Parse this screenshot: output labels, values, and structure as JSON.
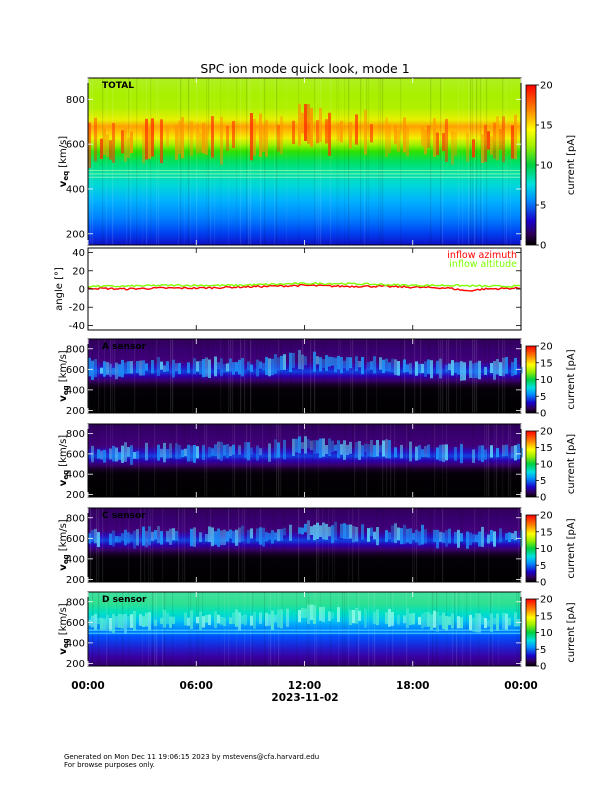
{
  "title": "SPC ion mode quick look, mode 1",
  "footer": {
    "line1": "Generated on Mon Dec 11 19:06:15 2023 by mstevens@cfa.harvard.edu",
    "line2": "For browse purposes only."
  },
  "chart_data": [
    {
      "type": "heatmap",
      "panel": "total",
      "label": "TOTAL",
      "ylabel_main": "v",
      "ylabel_sub": "eq",
      "ylabel_unit": "[km/s]",
      "yticks": [
        200,
        400,
        600,
        800
      ],
      "ylim": [
        150,
        895
      ],
      "colorbar_label": "current [pA]",
      "colorbar_ticks": [
        0,
        5,
        10,
        15,
        20
      ],
      "colorbar_range": [
        0,
        20
      ],
      "peak_speed_profile_kms": {
        "hours": [
          0,
          1,
          2,
          3,
          4,
          6,
          8,
          10,
          11,
          12,
          13,
          15,
          16,
          17,
          18,
          20,
          21,
          22,
          23,
          24
        ],
        "values": [
          610,
          590,
          600,
          610,
          620,
          620,
          625,
          630,
          660,
          690,
          660,
          650,
          640,
          630,
          620,
          605,
          590,
          600,
          620,
          610
        ]
      }
    },
    {
      "type": "line",
      "panel": "angle",
      "ylabel": "angle [°]",
      "yticks": [
        -40,
        -20,
        0,
        20,
        40
      ],
      "ylim": [
        -45,
        45
      ],
      "series": [
        {
          "name": "inflow azimuth",
          "color": "#ff0000",
          "hours": [
            0,
            2,
            4,
            6,
            8,
            10,
            12,
            14,
            16,
            18,
            20,
            21,
            22,
            24
          ],
          "values": [
            1,
            0,
            1,
            1,
            2,
            3,
            4,
            3,
            3,
            2,
            1,
            -2,
            0,
            1
          ]
        },
        {
          "name": "inflow altitude",
          "color": "#7fff00",
          "hours": [
            0,
            2,
            4,
            6,
            8,
            10,
            12,
            14,
            16,
            18,
            20,
            22,
            24
          ],
          "values": [
            3,
            3,
            4,
            4,
            4,
            5,
            6,
            6,
            5,
            4,
            4,
            3,
            3
          ]
        }
      ]
    },
    {
      "type": "heatmap",
      "panel": "A",
      "label": "A sensor",
      "ylabel_main": "v",
      "ylabel_sub": "eq",
      "ylabel_unit": "[km/s]",
      "yticks": [
        200,
        400,
        600,
        800
      ],
      "ylim": [
        175,
        895
      ],
      "colorbar_label": "current [pA]",
      "colorbar_ticks": [
        0,
        5,
        10,
        15,
        20
      ],
      "colorbar_range": [
        0,
        20
      ]
    },
    {
      "type": "heatmap",
      "panel": "B",
      "label": "",
      "ylabel_main": "v",
      "ylabel_sub": "eq",
      "ylabel_unit": "[km/s]",
      "yticks": [
        200,
        400,
        600,
        800
      ],
      "ylim": [
        175,
        895
      ],
      "colorbar_label": "current [pA]",
      "colorbar_ticks": [
        0,
        5,
        10,
        15,
        20
      ],
      "colorbar_range": [
        0,
        20
      ]
    },
    {
      "type": "heatmap",
      "panel": "C",
      "label": "C sensor",
      "ylabel_main": "v",
      "ylabel_sub": "eq",
      "ylabel_unit": "[km/s]",
      "yticks": [
        200,
        400,
        600,
        800
      ],
      "ylim": [
        175,
        895
      ],
      "colorbar_label": "current [pA]",
      "colorbar_ticks": [
        0,
        5,
        10,
        15,
        20
      ],
      "colorbar_range": [
        0,
        20
      ]
    },
    {
      "type": "heatmap",
      "panel": "D",
      "label": "D sensor",
      "ylabel_main": "v",
      "ylabel_sub": "eq",
      "ylabel_unit": "[km/s]",
      "yticks": [
        200,
        400,
        600,
        800
      ],
      "ylim": [
        175,
        895
      ],
      "colorbar_label": "current [pA]",
      "colorbar_ticks": [
        0,
        5,
        10,
        15,
        20
      ],
      "colorbar_range": [
        0,
        20
      ]
    }
  ],
  "x_axis": {
    "ticks": [
      "00:00",
      "06:00",
      "12:00",
      "18:00",
      "00:00"
    ],
    "tick_hours": [
      0,
      6,
      12,
      18,
      24
    ],
    "date_label": "2023-11-02"
  }
}
